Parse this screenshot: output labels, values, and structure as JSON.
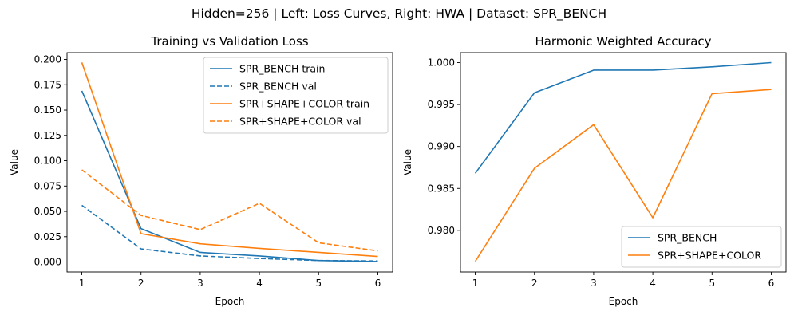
{
  "suptitle": "Hidden=256 | Left: Loss Curves, Right: HWA | Dataset: SPR_BENCH",
  "colors": {
    "blue": "#1f77b4",
    "orange": "#ff7f0e"
  },
  "chart_data": [
    {
      "type": "line",
      "title": "Training vs Validation Loss",
      "xlabel": "Epoch",
      "ylabel": "Value",
      "x": [
        1,
        2,
        3,
        4,
        5,
        6
      ],
      "xlim": [
        0.75,
        6.25
      ],
      "ylim": [
        -0.0098,
        0.2067
      ],
      "yticks": [
        "0.000",
        "0.025",
        "0.050",
        "0.075",
        "0.100",
        "0.125",
        "0.150",
        "0.175",
        "0.200"
      ],
      "ytick_values": [
        0,
        0.025,
        0.05,
        0.075,
        0.1,
        0.125,
        0.15,
        0.175,
        0.2
      ],
      "legend": "top-right",
      "grid": false,
      "series": [
        {
          "name": "SPR_BENCH train",
          "color": "#1f77b4",
          "dashed": false,
          "values": [
            0.169,
            0.033,
            0.0095,
            0.006,
            0.0015,
            0.0005
          ]
        },
        {
          "name": "SPR_BENCH val",
          "color": "#1f77b4",
          "dashed": true,
          "values": [
            0.056,
            0.013,
            0.006,
            0.0035,
            0.0015,
            0.001
          ]
        },
        {
          "name": "SPR+SHAPE+COLOR train",
          "color": "#ff7f0e",
          "dashed": false,
          "values": [
            0.197,
            0.028,
            0.018,
            0.0135,
            0.0095,
            0.0055
          ]
        },
        {
          "name": "SPR+SHAPE+COLOR val",
          "color": "#ff7f0e",
          "dashed": true,
          "values": [
            0.091,
            0.046,
            0.032,
            0.058,
            0.019,
            0.011
          ]
        }
      ]
    },
    {
      "type": "line",
      "title": "Harmonic Weighted Accuracy",
      "xlabel": "Epoch",
      "ylabel": "Value",
      "x": [
        1,
        2,
        3,
        4,
        5,
        6
      ],
      "xlim": [
        0.75,
        6.25
      ],
      "ylim": [
        0.97504,
        1.00119
      ],
      "yticks": [
        "0.980",
        "0.985",
        "0.990",
        "0.995",
        "1.000"
      ],
      "ytick_values": [
        0.98,
        0.985,
        0.99,
        0.995,
        1.0
      ],
      "legend": "bottom-right",
      "grid": false,
      "series": [
        {
          "name": "SPR_BENCH",
          "color": "#1f77b4",
          "dashed": false,
          "values": [
            0.9868,
            0.9964,
            0.9991,
            0.9991,
            0.9995,
            1.0
          ]
        },
        {
          "name": "SPR+SHAPE+COLOR",
          "color": "#ff7f0e",
          "dashed": false,
          "values": [
            0.9763,
            0.9874,
            0.9926,
            0.9815,
            0.9963,
            0.9968
          ]
        }
      ]
    }
  ]
}
